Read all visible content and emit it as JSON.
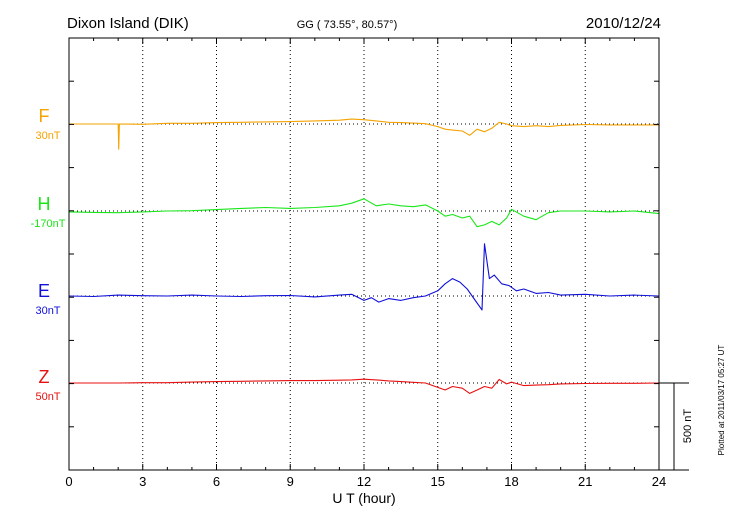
{
  "chart_data": {
    "type": "line",
    "title": "Dixon Island (DIK)",
    "coords": "GG ( 73.55°,  80.57°)",
    "date": "2010/12/24",
    "xlabel": "U T (hour)",
    "xlim": [
      0,
      24
    ],
    "xticks": [
      "0",
      "3",
      "6",
      "9",
      "12",
      "15",
      "18",
      "21",
      "24"
    ],
    "scale_bar": {
      "label": "500 nT",
      "value_nT": 500
    },
    "footer": "Plotted at 2011/03/17 05:27 UT",
    "grid": "dotted-vertical",
    "series": [
      {
        "name": "F",
        "baseline": "30nT",
        "color": "#f5a300",
        "x": [
          0,
          1,
          2,
          2.02,
          2.05,
          3,
          4,
          5,
          6,
          7,
          8,
          9,
          10,
          11,
          11.5,
          12,
          12.5,
          13,
          13.5,
          14,
          14.5,
          15,
          15.3,
          15.6,
          16,
          16.3,
          16.6,
          16.9,
          17.2,
          17.5,
          17.8,
          18,
          18.5,
          19,
          19.5,
          20,
          21,
          22,
          23,
          24
        ],
        "values": [
          0,
          0,
          0,
          -145,
          0,
          -2,
          4,
          4,
          8,
          10,
          12,
          14,
          18,
          22,
          28,
          25,
          18,
          10,
          8,
          5,
          2,
          -15,
          -30,
          -35,
          -40,
          -65,
          -30,
          -45,
          -25,
          10,
          0,
          -10,
          -15,
          -10,
          -15,
          -8,
          -3,
          -5,
          -5,
          -5
        ]
      },
      {
        "name": "H",
        "baseline": "-170nT",
        "color": "#19e619",
        "x": [
          0,
          1,
          2,
          3,
          4,
          5,
          6,
          7,
          8,
          9,
          10,
          11,
          11.5,
          12,
          12.5,
          13,
          13.5,
          14,
          14.5,
          15,
          15.3,
          15.6,
          16,
          16.3,
          16.6,
          16.9,
          17.2,
          17.5,
          17.8,
          18,
          18.5,
          19,
          19.5,
          20,
          21,
          22,
          23,
          24
        ],
        "values": [
          -5,
          -8,
          -10,
          -5,
          0,
          2,
          8,
          15,
          20,
          15,
          20,
          30,
          45,
          70,
          30,
          40,
          30,
          25,
          35,
          0,
          -30,
          -20,
          -40,
          -30,
          -90,
          -80,
          -60,
          -80,
          -40,
          10,
          -30,
          -50,
          -10,
          0,
          0,
          -5,
          0,
          -15
        ]
      },
      {
        "name": "E",
        "baseline": "30nT",
        "color": "#1010d8",
        "x": [
          0,
          1,
          2,
          3,
          4,
          5,
          6,
          7,
          8,
          9,
          10,
          11,
          11.5,
          12,
          12.3,
          12.6,
          13,
          13.5,
          14,
          14.5,
          15,
          15.3,
          15.6,
          15.9,
          16.2,
          16.5,
          16.8,
          16.9,
          17.1,
          17.3,
          17.6,
          17.9,
          18.2,
          18.5,
          19,
          19.5,
          20,
          21,
          22,
          23,
          24
        ],
        "values": [
          0,
          -3,
          5,
          2,
          0,
          5,
          0,
          -3,
          2,
          3,
          -5,
          5,
          10,
          -25,
          -10,
          -35,
          -15,
          -25,
          -10,
          0,
          30,
          70,
          100,
          80,
          40,
          -20,
          -80,
          300,
          100,
          120,
          70,
          60,
          30,
          40,
          15,
          20,
          5,
          10,
          0,
          5,
          0
        ]
      },
      {
        "name": "Z",
        "baseline": "50nT",
        "color": "#e81010",
        "x": [
          0,
          1,
          2,
          3,
          4,
          5,
          6,
          7,
          8,
          9,
          10,
          11,
          11.5,
          12,
          12.5,
          13,
          13.5,
          14,
          14.5,
          15,
          15.3,
          15.6,
          16,
          16.3,
          16.6,
          16.9,
          17.2,
          17.5,
          17.8,
          18,
          18.5,
          19,
          19.5,
          20,
          21,
          22,
          23,
          24
        ],
        "values": [
          0,
          0,
          0,
          2,
          2,
          5,
          8,
          10,
          12,
          14,
          14,
          16,
          18,
          22,
          18,
          12,
          8,
          4,
          0,
          -25,
          -40,
          -20,
          -30,
          -60,
          -40,
          -20,
          -30,
          20,
          -5,
          5,
          -15,
          -12,
          -10,
          -5,
          -3,
          -2,
          -2,
          0
        ]
      }
    ]
  }
}
